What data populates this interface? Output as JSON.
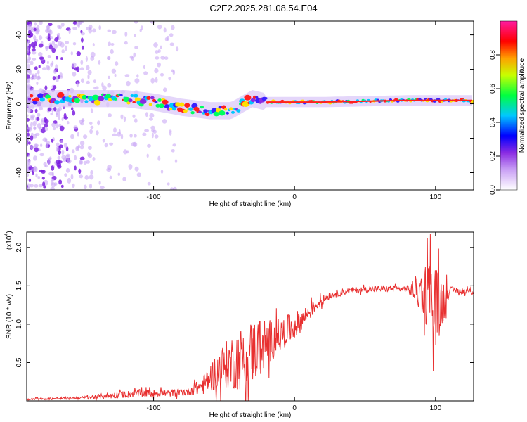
{
  "title": "C2E2.2025.281.08.54.E04",
  "chart_data": [
    {
      "type": "heatmap",
      "xlabel": "Height of straight line (km)",
      "ylabel": "Frequency (Hz)",
      "xlim": [
        -190,
        127
      ],
      "ylim": [
        -50,
        48
      ],
      "xticks": [
        -100,
        0,
        100
      ],
      "yticks": [
        -40,
        -20,
        0,
        20,
        40
      ],
      "colorbar": {
        "label": "Normalized spectral amplitude",
        "range": [
          0,
          1
        ],
        "ticks": [
          "0.0",
          "0.2",
          "0.4",
          "0.6",
          "0.8"
        ],
        "colors": [
          "#ffffff",
          "#8a2be2",
          "#0000ff",
          "#00ffff",
          "#00ff00",
          "#ffff00",
          "#ff0000",
          "#ff00ff"
        ]
      },
      "ridge": {
        "x": [
          -190,
          -150,
          -120,
          -100,
          -80,
          -60,
          -45,
          -30,
          -20,
          0,
          20,
          80,
          100,
          127
        ],
        "freq": [
          3,
          3,
          3,
          1,
          -2,
          -4,
          -4,
          3,
          1,
          1,
          1,
          2,
          2,
          2
        ]
      }
    },
    {
      "type": "line",
      "xlabel": "Height of straight line (km)",
      "ylabel": "SNR (10 * v/v)",
      "yscale_label": "(x10",
      "yscale_exp": "4",
      "xlim": [
        -190,
        127
      ],
      "ylim": [
        0,
        2.2
      ],
      "xticks": [
        -100,
        0,
        100
      ],
      "yticks": [
        "0.5",
        "1.0",
        "1.5",
        "2.0"
      ],
      "series": [
        {
          "name": "SNR",
          "color": "#e83030",
          "x": [
            -190,
            -150,
            -130,
            -110,
            -90,
            -75,
            -65,
            -55,
            -45,
            -35,
            -25,
            -15,
            -5,
            5,
            15,
            25,
            40,
            60,
            80,
            92,
            97,
            102,
            110,
            127
          ],
          "y": [
            0.02,
            0.04,
            0.07,
            0.1,
            0.1,
            0.12,
            0.2,
            0.4,
            0.5,
            0.58,
            0.7,
            0.8,
            0.92,
            1.05,
            1.25,
            1.38,
            1.44,
            1.46,
            1.46,
            1.42,
            1.35,
            1.2,
            1.45,
            1.42
          ],
          "spread": [
            0.01,
            0.02,
            0.04,
            0.05,
            0.05,
            0.05,
            0.12,
            0.25,
            0.35,
            0.45,
            0.4,
            0.25,
            0.2,
            0.15,
            0.08,
            0.05,
            0.04,
            0.04,
            0.04,
            0.35,
            0.6,
            0.5,
            0.04,
            0.04
          ]
        }
      ]
    }
  ]
}
